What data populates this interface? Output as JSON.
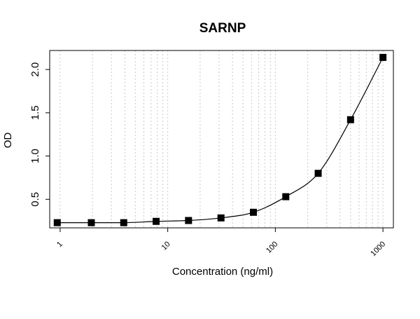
{
  "chart_data": {
    "type": "scatter",
    "title": "SARNP",
    "xlabel": "Concentration (ng/ml)",
    "ylabel": "OD",
    "x_scale": "log",
    "xlim": [
      0.8,
      1250
    ],
    "ylim": [
      0.17,
      2.22
    ],
    "x_ticks": [
      {
        "value": 1,
        "label": "1"
      },
      {
        "value": 10,
        "label": "10"
      },
      {
        "value": 100,
        "label": "100"
      },
      {
        "value": 1000,
        "label": "1000"
      }
    ],
    "y_ticks": [
      {
        "value": 0.5,
        "label": "0.5"
      },
      {
        "value": 1.0,
        "label": "1.0"
      },
      {
        "value": 1.5,
        "label": "1.5"
      },
      {
        "value": 2.0,
        "label": "2.0"
      }
    ],
    "grid": "vertical dotted at log minor ticks",
    "points": [
      {
        "x": 0.94,
        "y": 0.23
      },
      {
        "x": 1.95,
        "y": 0.23
      },
      {
        "x": 3.9,
        "y": 0.23
      },
      {
        "x": 7.8,
        "y": 0.245
      },
      {
        "x": 15.6,
        "y": 0.255
      },
      {
        "x": 31.25,
        "y": 0.285
      },
      {
        "x": 62.5,
        "y": 0.35
      },
      {
        "x": 125,
        "y": 0.53
      },
      {
        "x": 250,
        "y": 0.8
      },
      {
        "x": 500,
        "y": 1.42
      },
      {
        "x": 1000,
        "y": 2.14
      }
    ],
    "fit_curve": true,
    "marker": "filled-square",
    "colors": {
      "marker": "#000000",
      "curve": "#000000",
      "grid": "#c8c8c8",
      "frame": "#000000"
    }
  }
}
